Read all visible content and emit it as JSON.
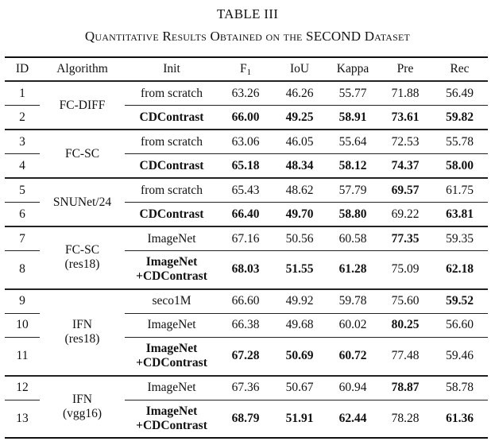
{
  "title": "TABLE III",
  "subtitle": "Quantitative Results Obtained on the SECOND Dataset",
  "table": {
    "columns": [
      {
        "key": "id",
        "label": "ID"
      },
      {
        "key": "init_label",
        "label": "Algorithm"
      },
      {
        "key": "init",
        "label": "Init"
      },
      {
        "key": "f1",
        "label": "F",
        "sub": "1"
      },
      {
        "key": "iou",
        "label": "IoU"
      },
      {
        "key": "kappa",
        "label": "Kappa"
      },
      {
        "key": "pre",
        "label": "Pre"
      },
      {
        "key": "rec",
        "label": "Rec"
      }
    ],
    "groups": [
      {
        "algorithm": [
          "FC-DIFF"
        ],
        "rows": [
          {
            "id": "1",
            "init": [
              "from scratch"
            ],
            "f1": "63.26",
            "iou": "46.26",
            "kappa": "55.77",
            "pre": "71.88",
            "rec": "56.49",
            "bold": []
          },
          {
            "id": "2",
            "init": [
              "CDContrast"
            ],
            "f1": "66.00",
            "iou": "49.25",
            "kappa": "58.91",
            "pre": "73.61",
            "rec": "59.82",
            "bold": [
              "init",
              "f1",
              "iou",
              "kappa",
              "pre",
              "rec"
            ]
          }
        ]
      },
      {
        "algorithm": [
          "FC-SC"
        ],
        "rows": [
          {
            "id": "3",
            "init": [
              "from scratch"
            ],
            "f1": "63.06",
            "iou": "46.05",
            "kappa": "55.64",
            "pre": "72.53",
            "rec": "55.78",
            "bold": []
          },
          {
            "id": "4",
            "init": [
              "CDContrast"
            ],
            "f1": "65.18",
            "iou": "48.34",
            "kappa": "58.12",
            "pre": "74.37",
            "rec": "58.00",
            "bold": [
              "init",
              "f1",
              "iou",
              "kappa",
              "pre",
              "rec"
            ]
          }
        ]
      },
      {
        "algorithm": [
          "SNUNet/24"
        ],
        "rows": [
          {
            "id": "5",
            "init": [
              "from scratch"
            ],
            "f1": "65.43",
            "iou": "48.62",
            "kappa": "57.79",
            "pre": "69.57",
            "rec": "61.75",
            "bold": [
              "pre"
            ]
          },
          {
            "id": "6",
            "init": [
              "CDContrast"
            ],
            "f1": "66.40",
            "iou": "49.70",
            "kappa": "58.80",
            "pre": "69.22",
            "rec": "63.81",
            "bold": [
              "init",
              "f1",
              "iou",
              "kappa",
              "rec"
            ]
          }
        ]
      },
      {
        "algorithm": [
          "FC-SC",
          "(res18)"
        ],
        "rows": [
          {
            "id": "7",
            "init": [
              "ImageNet"
            ],
            "f1": "67.16",
            "iou": "50.56",
            "kappa": "60.58",
            "pre": "77.35",
            "rec": "59.35",
            "bold": [
              "pre"
            ]
          },
          {
            "id": "8",
            "init": [
              "ImageNet",
              "+CDContrast"
            ],
            "f1": "68.03",
            "iou": "51.55",
            "kappa": "61.28",
            "pre": "75.09",
            "rec": "62.18",
            "bold": [
              "init",
              "f1",
              "iou",
              "kappa",
              "rec"
            ]
          }
        ]
      },
      {
        "algorithm": [
          "IFN",
          "(res18)"
        ],
        "rows": [
          {
            "id": "9",
            "init": [
              "seco1M"
            ],
            "f1": "66.60",
            "iou": "49.92",
            "kappa": "59.78",
            "pre": "75.60",
            "rec": "59.52",
            "bold": [
              "rec"
            ]
          },
          {
            "id": "10",
            "init": [
              "ImageNet"
            ],
            "f1": "66.38",
            "iou": "49.68",
            "kappa": "60.02",
            "pre": "80.25",
            "rec": "56.60",
            "bold": [
              "pre"
            ]
          },
          {
            "id": "11",
            "init": [
              "ImageNet",
              "+CDContrast"
            ],
            "f1": "67.28",
            "iou": "50.69",
            "kappa": "60.72",
            "pre": "77.48",
            "rec": "59.46",
            "bold": [
              "init",
              "f1",
              "iou",
              "kappa"
            ]
          }
        ]
      },
      {
        "algorithm": [
          "IFN",
          "(vgg16)"
        ],
        "rows": [
          {
            "id": "12",
            "init": [
              "ImageNet"
            ],
            "f1": "67.36",
            "iou": "50.67",
            "kappa": "60.94",
            "pre": "78.87",
            "rec": "58.78",
            "bold": [
              "pre"
            ]
          },
          {
            "id": "13",
            "init": [
              "ImageNet",
              "+CDContrast"
            ],
            "f1": "68.79",
            "iou": "51.91",
            "kappa": "62.44",
            "pre": "78.28",
            "rec": "61.36",
            "bold": [
              "init",
              "f1",
              "iou",
              "kappa",
              "rec"
            ]
          }
        ]
      }
    ]
  }
}
